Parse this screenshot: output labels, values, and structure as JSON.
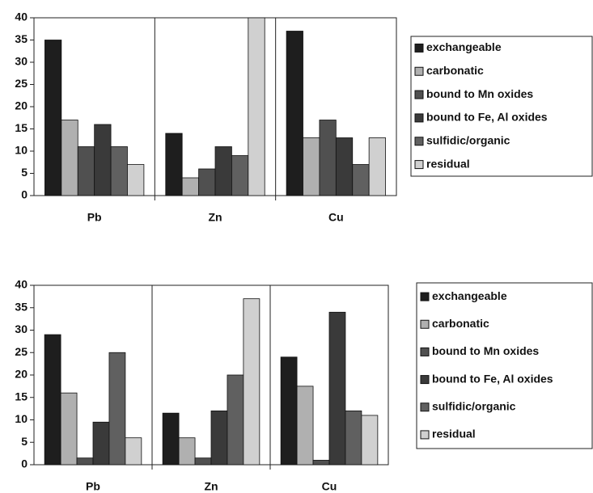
{
  "chart_data": [
    {
      "type": "bar",
      "categories": [
        "Pb",
        "Zn",
        "Cu"
      ],
      "series": [
        {
          "name": "exchangeable",
          "color": "#1e1e1e",
          "values": [
            35,
            14,
            37
          ]
        },
        {
          "name": "carbonatic",
          "color": "#b0b0b0",
          "values": [
            17,
            4,
            13
          ]
        },
        {
          "name": "bound to Mn oxides",
          "color": "#505050",
          "values": [
            11,
            6,
            17
          ]
        },
        {
          "name": "bound to Fe, Al oxides",
          "color": "#3a3a3a",
          "values": [
            16,
            11,
            13
          ]
        },
        {
          "name": "sulfidic/organic",
          "color": "#606060",
          "values": [
            11,
            9,
            7
          ]
        },
        {
          "name": "residual",
          "color": "#d0d0d0",
          "values": [
            7,
            40,
            13
          ]
        }
      ],
      "ylim": [
        0,
        40
      ],
      "yticks": [
        0,
        5,
        10,
        15,
        20,
        25,
        30,
        35,
        40
      ],
      "legend": "right"
    },
    {
      "type": "bar",
      "categories": [
        "Pb",
        "Zn",
        "Cu"
      ],
      "series": [
        {
          "name": "exchangeable",
          "color": "#1e1e1e",
          "values": [
            29,
            11.5,
            24
          ]
        },
        {
          "name": "carbonatic",
          "color": "#b0b0b0",
          "values": [
            16,
            6,
            17.5
          ]
        },
        {
          "name": "bound to Mn oxides",
          "color": "#505050",
          "values": [
            1.5,
            1.5,
            1
          ]
        },
        {
          "name": "bound to Fe, Al oxides",
          "color": "#3a3a3a",
          "values": [
            9.5,
            12,
            34
          ]
        },
        {
          "name": "sulfidic/organic",
          "color": "#606060",
          "values": [
            25,
            20,
            12
          ]
        },
        {
          "name": "residual",
          "color": "#d0d0d0",
          "values": [
            6,
            37,
            11
          ]
        }
      ],
      "ylim": [
        0,
        40
      ],
      "yticks": [
        0,
        5,
        10,
        15,
        20,
        25,
        30,
        35,
        40
      ],
      "legend": "right"
    }
  ]
}
